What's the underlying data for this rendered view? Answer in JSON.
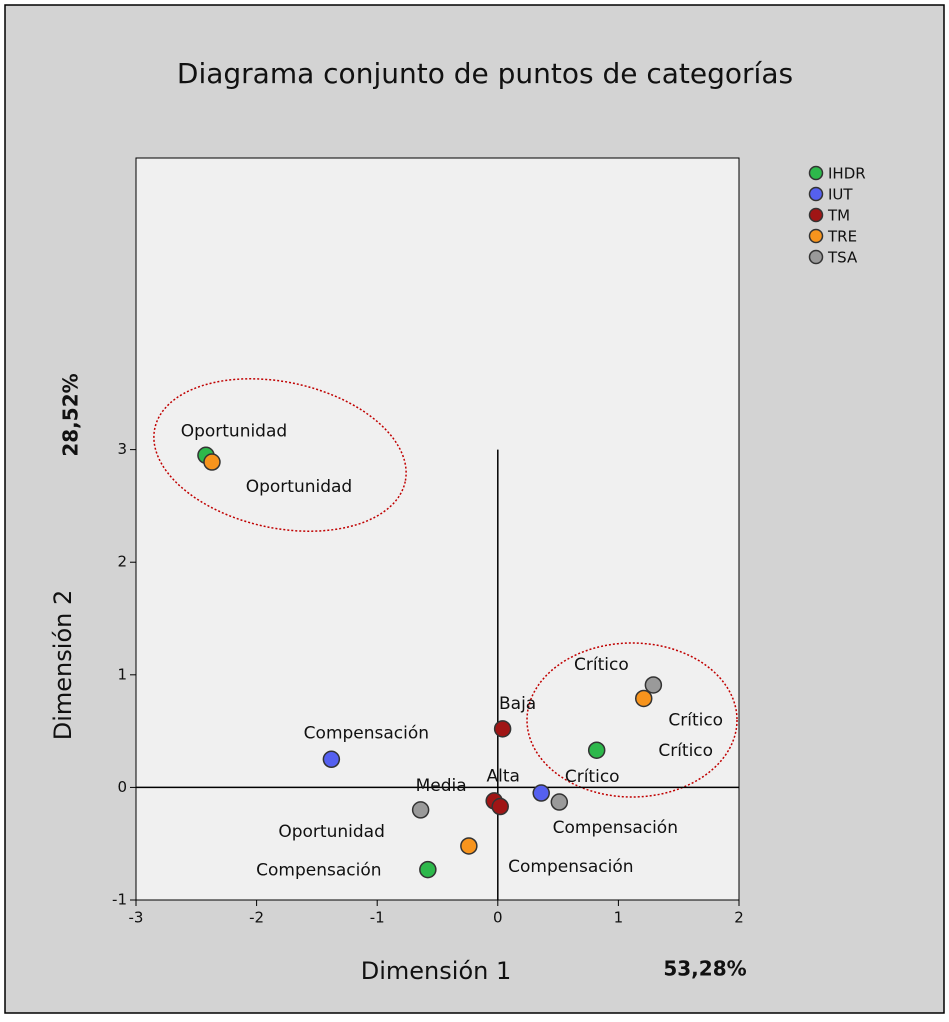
{
  "chart_data": {
    "type": "scatter",
    "title": "Diagrama conjunto de puntos de categorías",
    "x_label": "Dimensión 1",
    "y_label": "Dimensión 2",
    "x_inertia": "53,28%",
    "y_inertia": "28,52%",
    "xlim": [
      -3,
      2
    ],
    "ylim": [
      -1,
      5.59
    ],
    "xticks": [
      -3,
      -2,
      -1,
      0,
      1,
      2
    ],
    "yticks": [
      -1,
      0,
      1,
      2,
      3
    ],
    "legend": "top-right",
    "series": [
      {
        "name": "IHDR",
        "color": "#2db84b",
        "x": [
          -2.42,
          0.82,
          -0.58
        ],
        "y": [
          2.95,
          0.33,
          -0.73
        ],
        "labels": [
          "Oportunidad",
          "Crítico",
          "Compensación"
        ]
      },
      {
        "name": "IUT",
        "color": "#5560f0",
        "x": [
          -1.38,
          0.36
        ],
        "y": [
          0.25,
          -0.05
        ],
        "labels": [
          "Compensación",
          "Crítico"
        ]
      },
      {
        "name": "TM",
        "color": "#a01515",
        "x": [
          0.04,
          -0.03,
          0.02
        ],
        "y": [
          0.52,
          -0.12,
          -0.17
        ],
        "labels": [
          "Baja",
          "Media",
          "Alta"
        ]
      },
      {
        "name": "TRE",
        "color": "#f7941d",
        "x": [
          -2.37,
          1.21,
          -0.24
        ],
        "y": [
          2.89,
          0.79,
          -0.52
        ],
        "labels": [
          "Oportunidad",
          "Crítico",
          "Compensación"
        ]
      },
      {
        "name": "TSA",
        "color": "#9a9a9a",
        "x": [
          -0.64,
          1.29,
          0.51
        ],
        "y": [
          -0.2,
          0.91,
          -0.13
        ],
        "labels": [
          "Oportunidad",
          "Crítico",
          "Compensación"
        ]
      }
    ]
  }
}
